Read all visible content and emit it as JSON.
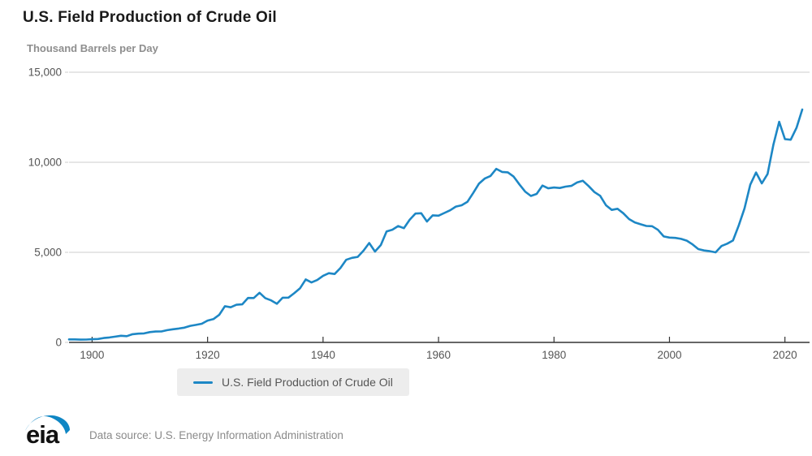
{
  "header": {
    "title": "U.S. Field Production of Crude Oil",
    "subtitle": "Thousand Barrels per Day"
  },
  "legend": {
    "label": "U.S. Field Production of Crude Oil"
  },
  "footer": {
    "logo_text": "eia",
    "source_text": "Data source: U.S. Energy Information Administration"
  },
  "chart_data": {
    "type": "line",
    "title": "U.S. Field Production of Crude Oil",
    "ylabel": "Thousand Barrels per Day",
    "xlabel": "",
    "ylim": [
      0,
      15000
    ],
    "x_range": [
      1896,
      2023
    ],
    "grid": true,
    "legend_position": "bottom",
    "colors": {
      "line": "#1d87c5",
      "grid": "#cccccc",
      "axis": "#333333",
      "tick_text": "#555555",
      "logo_blue": "#0f86c4"
    },
    "yticks": [
      {
        "value": 0,
        "label": "0"
      },
      {
        "value": 5000,
        "label": "5,000"
      },
      {
        "value": 10000,
        "label": "10,000"
      },
      {
        "value": 15000,
        "label": "15,000"
      }
    ],
    "xticks": [
      1900,
      1920,
      1940,
      1960,
      1980,
      2000,
      2020
    ],
    "years": [
      1896,
      1897,
      1898,
      1899,
      1900,
      1901,
      1902,
      1903,
      1904,
      1905,
      1906,
      1907,
      1908,
      1909,
      1910,
      1911,
      1912,
      1913,
      1914,
      1915,
      1916,
      1917,
      1918,
      1919,
      1920,
      1921,
      1922,
      1923,
      1924,
      1925,
      1926,
      1927,
      1928,
      1929,
      1930,
      1931,
      1932,
      1933,
      1934,
      1935,
      1936,
      1937,
      1938,
      1939,
      1940,
      1941,
      1942,
      1943,
      1944,
      1945,
      1946,
      1947,
      1948,
      1949,
      1950,
      1951,
      1952,
      1953,
      1954,
      1955,
      1956,
      1957,
      1958,
      1959,
      1960,
      1961,
      1962,
      1963,
      1964,
      1965,
      1966,
      1967,
      1968,
      1969,
      1970,
      1971,
      1972,
      1973,
      1974,
      1975,
      1976,
      1977,
      1978,
      1979,
      1980,
      1981,
      1982,
      1983,
      1984,
      1985,
      1986,
      1987,
      1988,
      1989,
      1990,
      1991,
      1992,
      1993,
      1994,
      1995,
      1996,
      1997,
      1998,
      1999,
      2000,
      2001,
      2002,
      2003,
      2004,
      2005,
      2006,
      2007,
      2008,
      2009,
      2010,
      2011,
      2012,
      2013,
      2014,
      2015,
      2016,
      2017,
      2018,
      2019,
      2020,
      2021,
      2022,
      2023
    ],
    "series": [
      {
        "name": "U.S. Field Production of Crude Oil",
        "values": [
          167,
          166,
          152,
          157,
          174,
          190,
          243,
          275,
          320,
          369,
          347,
          456,
          488,
          501,
          574,
          604,
          609,
          681,
          728,
          770,
          822,
          919,
          975,
          1037,
          1210,
          1294,
          1527,
          2007,
          1952,
          2092,
          2112,
          2469,
          2463,
          2757,
          2460,
          2332,
          2145,
          2481,
          2488,
          2730,
          3001,
          3497,
          3327,
          3466,
          3697,
          3842,
          3799,
          4125,
          4584,
          4695,
          4750,
          5088,
          5520,
          5046,
          5407,
          6158,
          6256,
          6458,
          6342,
          6807,
          7151,
          7170,
          6710,
          7054,
          7035,
          7183,
          7332,
          7542,
          7614,
          7804,
          8295,
          8810,
          9096,
          9238,
          9637,
          9463,
          9441,
          9208,
          8774,
          8375,
          8132,
          8245,
          8707,
          8552,
          8597,
          8572,
          8649,
          8688,
          8879,
          8971,
          8680,
          8349,
          8140,
          7613,
          7355,
          7417,
          7171,
          6847,
          6662,
          6560,
          6465,
          6452,
          6252,
          5881,
          5822,
          5801,
          5746,
          5649,
          5441,
          5178,
          5102,
          5064,
          5000,
          5353,
          5482,
          5659,
          6497,
          7441,
          8759,
          9431,
          8831,
          9352,
          10964,
          12248,
          11283,
          11254,
          11911,
          12927
        ]
      }
    ]
  }
}
